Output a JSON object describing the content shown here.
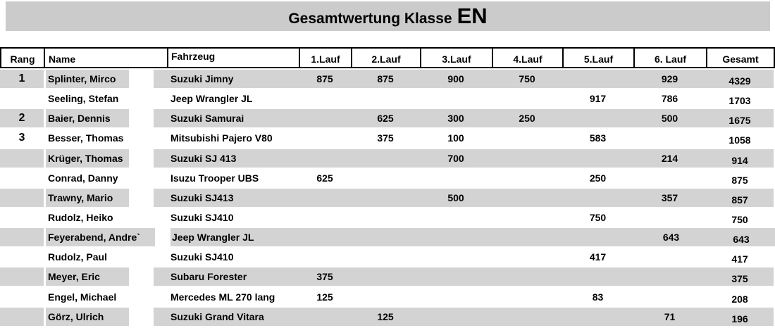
{
  "title": {
    "main": "Gesamtwertung Klasse",
    "class_label": "EN"
  },
  "columns": [
    "Rang",
    "Name",
    "Fahrzeug",
    "1.Lauf",
    "2.Lauf",
    "3.Lauf",
    "4.Lauf",
    "5.Lauf",
    "6. Lauf",
    "Gesamt"
  ],
  "rows": [
    {
      "rank": "1",
      "name": "Splinter, Mirco",
      "vehicle": "Suzuki Jimny",
      "runs": [
        "875",
        "875",
        "900",
        "750",
        "",
        "929"
      ],
      "total": "4329"
    },
    {
      "rank": "",
      "name": "Seeling, Stefan",
      "vehicle": "Jeep Wrangler JL",
      "runs": [
        "",
        "",
        "",
        "",
        "917",
        "786"
      ],
      "total": "1703"
    },
    {
      "rank": "2",
      "name": "Baier, Dennis",
      "vehicle": "Suzuki Samurai",
      "runs": [
        "",
        "625",
        "300",
        "250",
        "",
        "500"
      ],
      "total": "1675"
    },
    {
      "rank": "3",
      "name": "Besser, Thomas",
      "vehicle": "Mitsubishi Pajero V80",
      "runs": [
        "",
        "375",
        "100",
        "",
        "583",
        ""
      ],
      "total": "1058"
    },
    {
      "rank": "",
      "name": "Krüger, Thomas",
      "vehicle": "Suzuki SJ 413",
      "runs": [
        "",
        "",
        "700",
        "",
        "",
        "214"
      ],
      "total": "914"
    },
    {
      "rank": "",
      "name": "Conrad, Danny",
      "vehicle": "Isuzu Trooper UBS",
      "runs": [
        "625",
        "",
        "",
        "",
        "250",
        ""
      ],
      "total": "875"
    },
    {
      "rank": "",
      "name": "Trawny, Mario",
      "vehicle": "Suzuki SJ413",
      "runs": [
        "",
        "",
        "500",
        "",
        "",
        "357"
      ],
      "total": "857"
    },
    {
      "rank": "",
      "name": "Rudolz, Heiko",
      "vehicle": "Suzuki SJ410",
      "runs": [
        "",
        "",
        "",
        "",
        "750",
        ""
      ],
      "total": "750"
    },
    {
      "rank": "",
      "name": "Feyerabend, Andre`",
      "vehicle": "Jeep Wrangler JL",
      "runs": [
        "",
        "",
        "",
        "",
        "",
        "643"
      ],
      "total": "643"
    },
    {
      "rank": "",
      "name": "Rudolz, Paul",
      "vehicle": "Suzuki SJ410",
      "runs": [
        "",
        "",
        "",
        "",
        "417",
        ""
      ],
      "total": "417"
    },
    {
      "rank": "",
      "name": "Meyer, Eric",
      "vehicle": "Subaru Forester",
      "runs": [
        "375",
        "",
        "",
        "",
        "",
        ""
      ],
      "total": "375"
    },
    {
      "rank": "",
      "name": "Engel, Michael",
      "vehicle": "Mercedes ML 270 lang",
      "runs": [
        "125",
        "",
        "",
        "",
        "83",
        ""
      ],
      "total": "208"
    },
    {
      "rank": "",
      "name": "Görz, Ulrich",
      "vehicle": "Suzuki Grand Vitara",
      "runs": [
        "",
        "125",
        "",
        "",
        "",
        "71"
      ],
      "total": "196"
    }
  ],
  "colors": {
    "title_bar_bg": "#cbcbcb",
    "row_stripe": "#d3d3d3",
    "border": "#000000"
  }
}
